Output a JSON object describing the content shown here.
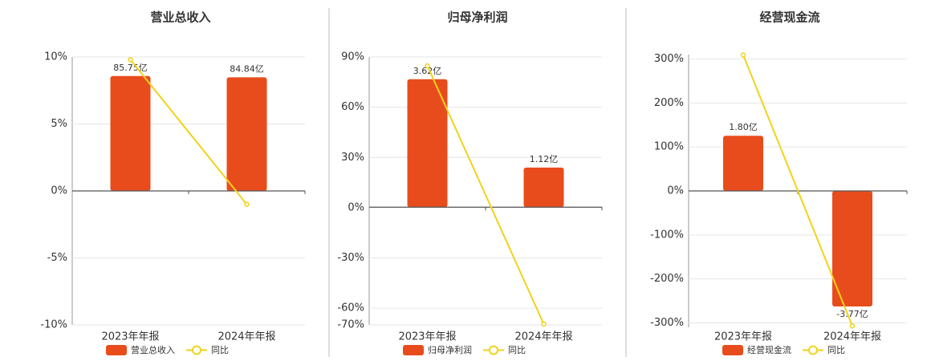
{
  "chart_data": [
    {
      "type": "bar",
      "title": "营业总收入",
      "categories": [
        "2023年年报",
        "2024年年报"
      ],
      "series": [
        {
          "name": "营业总收入",
          "type": "bar",
          "axis": "y2",
          "color": "#e84c1c",
          "values": [
            85.75,
            84.84
          ],
          "value_labels": [
            "85.75亿",
            "84.84亿"
          ]
        },
        {
          "name": "同比",
          "type": "line",
          "color": "#f2d21b",
          "values": [
            9.8,
            -1.0
          ]
        }
      ],
      "ylim": [
        -10,
        10
      ],
      "yticks": [
        {
          "value": -10,
          "label": "-10%"
        },
        {
          "value": -5,
          "label": "-5%"
        },
        {
          "value": 0,
          "label": "0%"
        },
        {
          "value": 5,
          "label": "5%"
        },
        {
          "value": 10,
          "label": "10%"
        }
      ],
      "y2lim": [
        -100,
        100
      ],
      "grid": true
    },
    {
      "type": "bar",
      "title": "归母净利润",
      "categories": [
        "2023年年报",
        "2024年年报"
      ],
      "series": [
        {
          "name": "归母净利润",
          "type": "bar",
          "axis": "y2",
          "color": "#e84c1c",
          "values": [
            3.62,
            1.12
          ],
          "value_labels": [
            "3.62亿",
            "1.12亿"
          ]
        },
        {
          "name": "同比",
          "type": "line",
          "color": "#f2d21b",
          "values": [
            84.7,
            -69.5
          ]
        }
      ],
      "ylim": [
        -70,
        90
      ],
      "yticks": [
        {
          "value": -70,
          "label": "-70%"
        },
        {
          "value": -60,
          "label": "-60%"
        },
        {
          "value": -30,
          "label": "-30%"
        },
        {
          "value": 0,
          "label": "0%"
        },
        {
          "value": 30,
          "label": "30%"
        },
        {
          "value": 60,
          "label": "60%"
        },
        {
          "value": 90,
          "label": "90%"
        }
      ],
      "y2lim": [
        -3.33,
        4.25
      ],
      "grid": true
    },
    {
      "type": "bar",
      "title": "经营现金流",
      "categories": [
        "2023年年报",
        "2024年年报"
      ],
      "series": [
        {
          "name": "经营现金流",
          "type": "bar",
          "axis": "y2",
          "color": "#e84c1c",
          "values": [
            1.8,
            -3.77
          ],
          "value_labels": [
            "1.80亿",
            "-3.77亿"
          ]
        },
        {
          "name": "同比",
          "type": "line",
          "color": "#f2d21b",
          "values": [
            309,
            -307
          ]
        }
      ],
      "ylim": [
        -310,
        310
      ],
      "yticks": [
        {
          "value": -300,
          "label": "-300%"
        },
        {
          "value": -200,
          "label": "-200%"
        },
        {
          "value": -100,
          "label": "-100%"
        },
        {
          "value": 0,
          "label": "0%"
        },
        {
          "value": 100,
          "label": "100%"
        },
        {
          "value": 200,
          "label": "200%"
        },
        {
          "value": 300,
          "label": "300%"
        }
      ],
      "y2lim": [
        -4.45,
        4.45
      ],
      "grid": true
    }
  ]
}
